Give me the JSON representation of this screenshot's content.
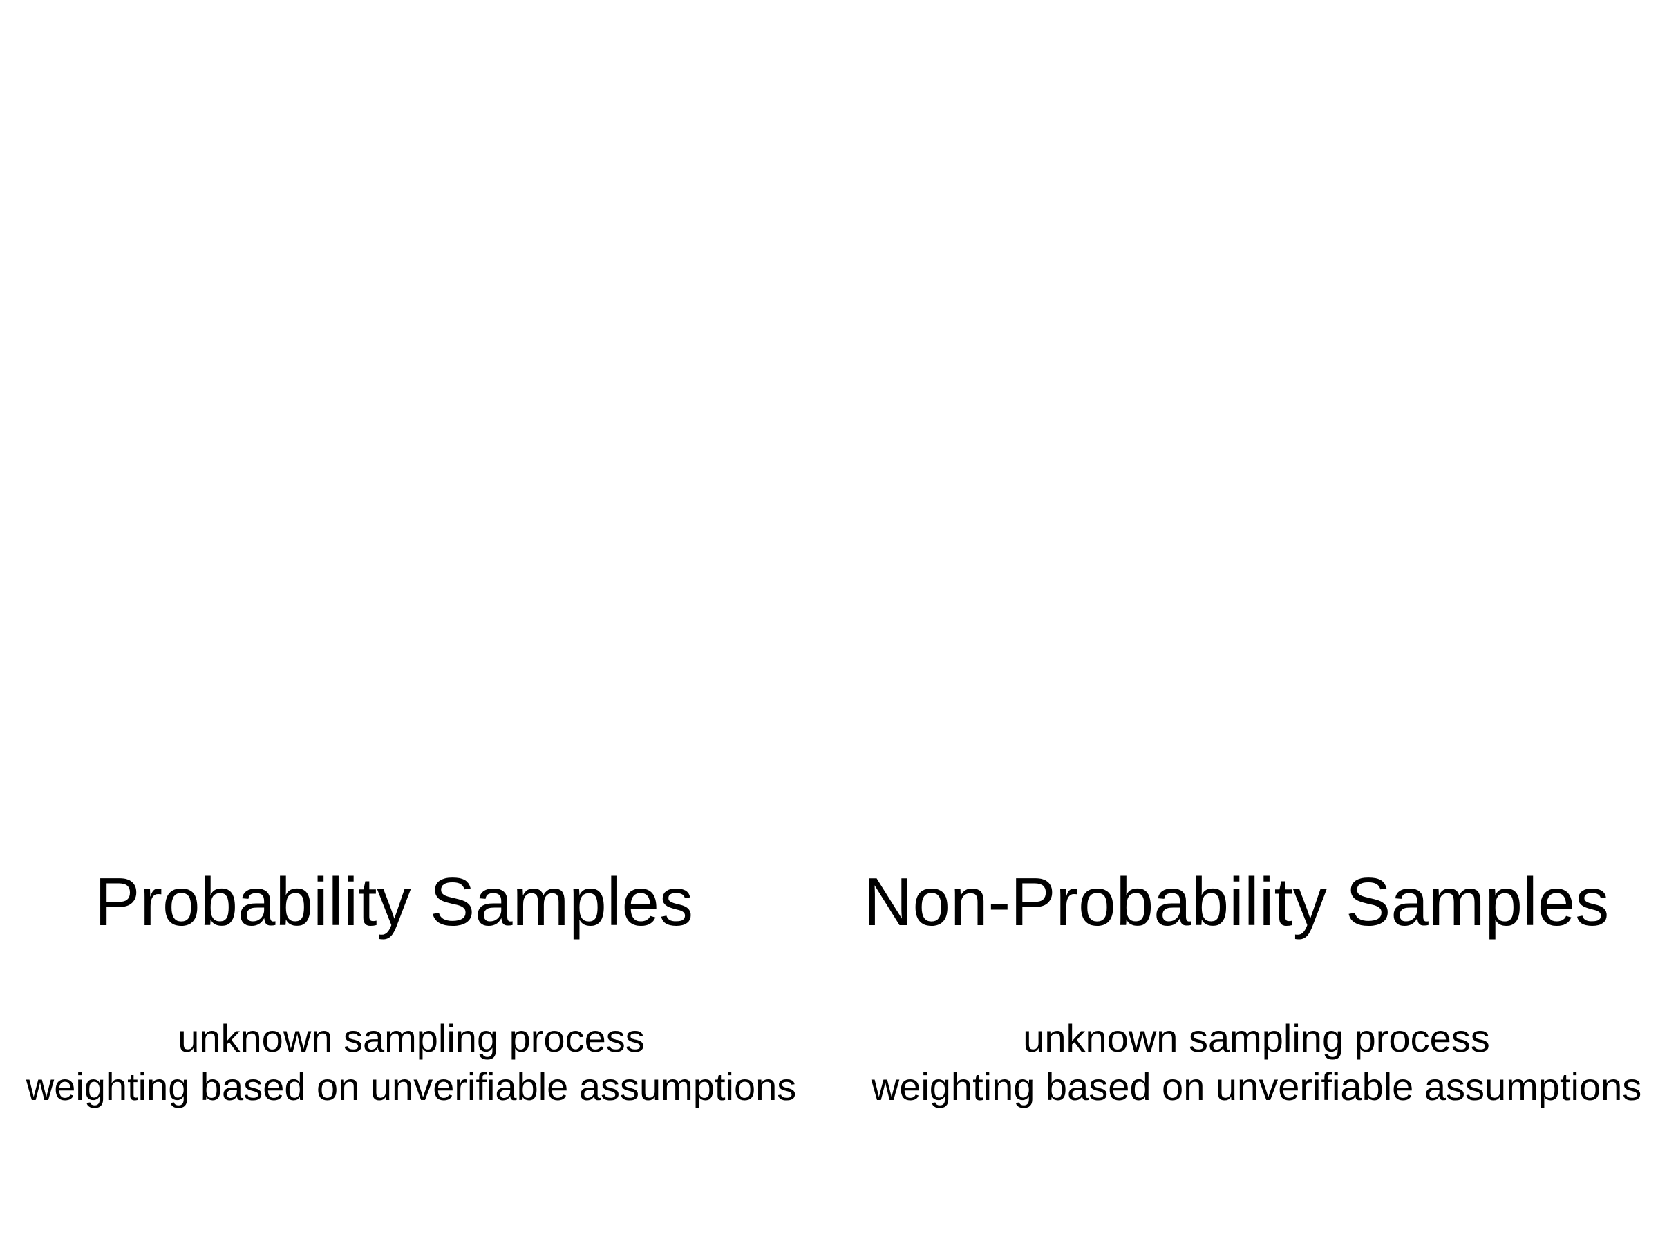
{
  "columns": [
    {
      "heading": "Probability Samples",
      "lines": [
        "unknown sampling process",
        "weighting based on unverifiable assumptions"
      ]
    },
    {
      "heading": "Non-Probability Samples",
      "lines": [
        "unknown sampling process",
        "weighting based on unverifiable assumptions"
      ]
    }
  ],
  "colors": {
    "background": "#ffffff",
    "text": "#000000"
  }
}
